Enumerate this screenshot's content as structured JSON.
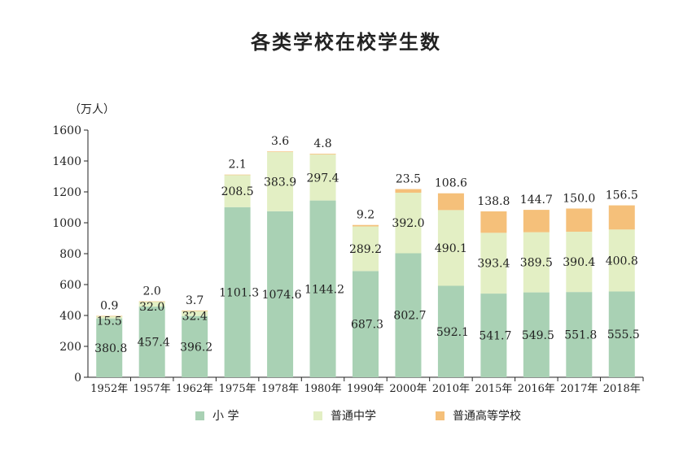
{
  "chart_data": {
    "type": "bar",
    "stacked": true,
    "title": "各类学校在校学生数",
    "ylabel": "（万人）",
    "ylim": [
      0,
      1600
    ],
    "yticks": [
      0,
      200,
      400,
      600,
      800,
      1000,
      1200,
      1400,
      1600
    ],
    "categories": [
      "1952年",
      "1957年",
      "1962年",
      "1975年",
      "1978年",
      "1980年",
      "1990年",
      "2000年",
      "2010年",
      "2015年",
      "2016年",
      "2017年",
      "2018年"
    ],
    "series": [
      {
        "name": "小  学",
        "color": "#a9d1b4",
        "values": [
          380.8,
          457.4,
          396.2,
          1101.3,
          1074.6,
          1144.2,
          687.3,
          802.7,
          592.1,
          541.7,
          549.5,
          551.8,
          555.5
        ]
      },
      {
        "name": "普通中学",
        "color": "#e3efc4",
        "values": [
          15.5,
          32.0,
          32.4,
          208.5,
          383.9,
          297.4,
          289.2,
          392.0,
          490.1,
          393.4,
          389.5,
          390.4,
          400.8
        ]
      },
      {
        "name": "普通高等学校",
        "color": "#f5c07a",
        "values": [
          0.9,
          2.0,
          3.7,
          2.1,
          3.6,
          4.8,
          9.2,
          23.5,
          108.6,
          138.8,
          144.7,
          150.0,
          156.5
        ]
      }
    ],
    "legend_position": "bottom",
    "grid": false
  }
}
